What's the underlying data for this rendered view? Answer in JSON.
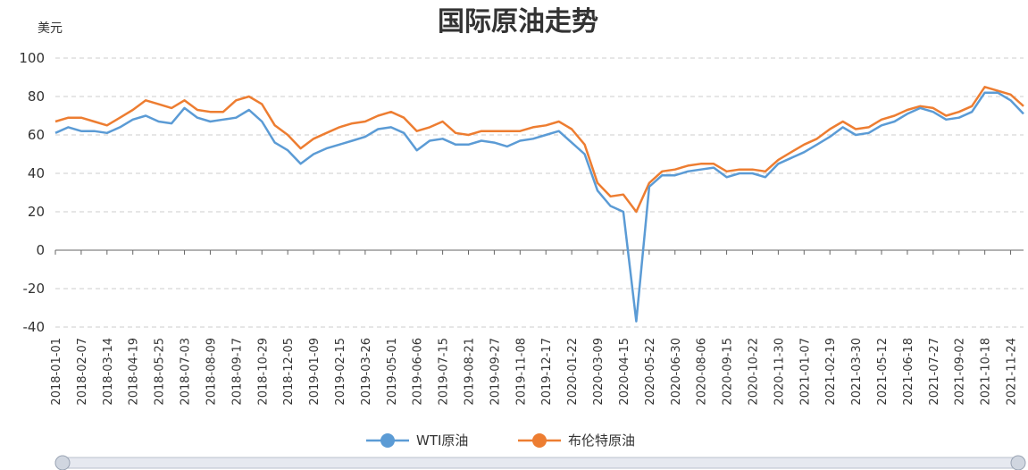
{
  "chart_data": {
    "type": "line",
    "title": "国际原油走势",
    "y_label": "美元",
    "categories": [
      "2018-01-01",
      null,
      "2018-02-07",
      null,
      "2018-03-14",
      null,
      "2018-04-19",
      null,
      "2018-05-25",
      null,
      "2018-07-03",
      null,
      "2018-08-09",
      null,
      "2018-09-17",
      null,
      "2018-10-29",
      null,
      "2018-12-05",
      null,
      "2019-01-09",
      null,
      "2019-02-15",
      null,
      "2019-03-26",
      null,
      "2019-05-01",
      null,
      "2019-06-06",
      null,
      "2019-07-15",
      null,
      "2019-08-21",
      null,
      "2019-09-27",
      null,
      "2019-11-08",
      null,
      "2019-12-17",
      null,
      "2020-01-22",
      null,
      "2020-03-09",
      null,
      "2020-04-15",
      null,
      "2020-05-22",
      null,
      "2020-06-30",
      null,
      "2020-08-06",
      null,
      "2020-09-15",
      null,
      "2020-10-22",
      null,
      "2020-11-30",
      null,
      "2021-01-07",
      null,
      "2021-02-19",
      null,
      "2021-03-30",
      null,
      "2021-05-12",
      null,
      "2021-06-18",
      null,
      "2021-07-27",
      null,
      "2021-09-02",
      null,
      "2021-10-18",
      null,
      "2021-11-24",
      null
    ],
    "series": [
      {
        "name": "WTI原油",
        "color": "#5b9bd5",
        "values": [
          61,
          64,
          62,
          62,
          61,
          64,
          68,
          70,
          67,
          66,
          74,
          69,
          67,
          68,
          69,
          73,
          67,
          56,
          52,
          45,
          50,
          53,
          55,
          57,
          59,
          63,
          64,
          61,
          52,
          57,
          58,
          55,
          55,
          57,
          56,
          54,
          57,
          58,
          60,
          62,
          56,
          50,
          31,
          23,
          20,
          -37,
          33,
          39,
          39,
          41,
          42,
          43,
          38,
          40,
          40,
          38,
          45,
          48,
          51,
          55,
          59,
          64,
          60,
          61,
          65,
          67,
          71,
          74,
          72,
          68,
          69,
          72,
          82,
          82,
          78,
          71
        ]
      },
      {
        "name": "布伦特原油",
        "color": "#ed7d31",
        "values": [
          67,
          69,
          69,
          67,
          65,
          69,
          73,
          78,
          76,
          74,
          78,
          73,
          72,
          72,
          78,
          80,
          76,
          65,
          60,
          53,
          58,
          61,
          64,
          66,
          67,
          70,
          72,
          69,
          62,
          64,
          67,
          61,
          60,
          62,
          62,
          62,
          62,
          64,
          65,
          67,
          63,
          55,
          35,
          28,
          29,
          20,
          35,
          41,
          42,
          44,
          45,
          45,
          41,
          42,
          42,
          41,
          47,
          51,
          55,
          58,
          63,
          67,
          63,
          64,
          68,
          70,
          73,
          75,
          74,
          70,
          72,
          75,
          85,
          83,
          81,
          75
        ]
      }
    ],
    "ylim": [
      -40,
      100
    ],
    "yticks": [
      -40,
      -20,
      0,
      20,
      40,
      60,
      80,
      100
    ],
    "grid": true
  }
}
